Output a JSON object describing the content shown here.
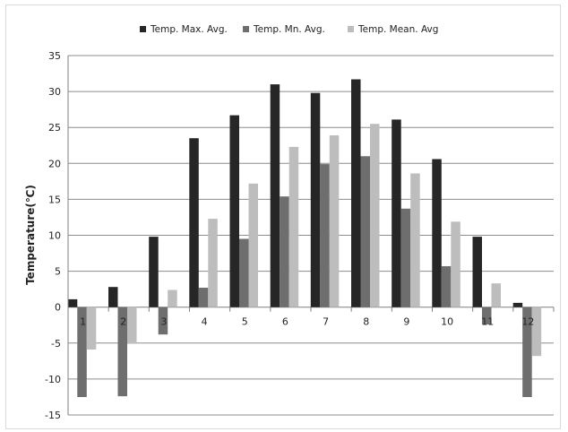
{
  "chart_data": {
    "type": "bar",
    "categories": [
      "1",
      "2",
      "3",
      "4",
      "5",
      "6",
      "7",
      "8",
      "9",
      "10",
      "11",
      "12"
    ],
    "series": [
      {
        "name": "Temp. Max. Avg.",
        "color": "#262626",
        "values": [
          1.1,
          2.8,
          9.8,
          23.5,
          26.7,
          31.0,
          29.8,
          31.7,
          26.1,
          20.6,
          9.8,
          0.6
        ]
      },
      {
        "name": "Temp. Mn. Avg.",
        "color": "#6e6e6e",
        "values": [
          -12.5,
          -12.4,
          -3.8,
          2.7,
          9.5,
          15.4,
          19.9,
          21.0,
          13.7,
          5.7,
          -2.4,
          -12.5
        ]
      },
      {
        "name": "Temp. Mean. Avg",
        "color": "#bdbdbd",
        "values": [
          -5.9,
          -5.1,
          2.4,
          12.3,
          17.2,
          22.3,
          23.9,
          25.5,
          18.6,
          11.9,
          3.3,
          -6.8
        ]
      }
    ],
    "ylabel": "Temperature(℃)",
    "ylim": [
      -15,
      35
    ],
    "yticks": [
      -15,
      -10,
      -5,
      0,
      5,
      10,
      15,
      20,
      25,
      30,
      35
    ],
    "grid": true,
    "legend": "top"
  }
}
